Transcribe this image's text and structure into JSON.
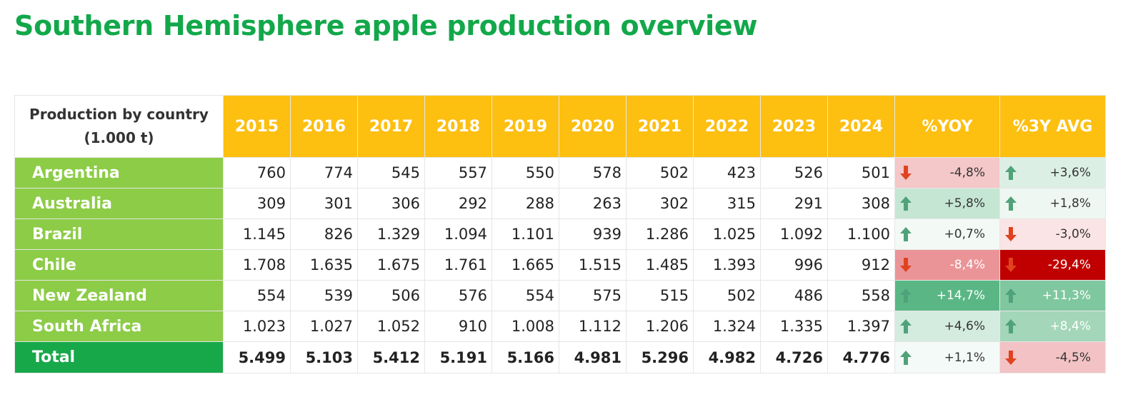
{
  "title": "Southern Hemisphere apple production overview",
  "table": {
    "header": {
      "label_line1": "Production by country",
      "label_line2": "(1.000 t)",
      "years": [
        "2015",
        "2016",
        "2017",
        "2018",
        "2019",
        "2020",
        "2021",
        "2022",
        "2023",
        "2024"
      ],
      "yoy": "%YOY",
      "avg3y": "%3Y AVG"
    },
    "rows": [
      {
        "country": "Argentina",
        "values": [
          "760",
          "774",
          "545",
          "557",
          "550",
          "578",
          "502",
          "423",
          "526",
          "501"
        ],
        "yoy": {
          "text": "-4,8%",
          "dir": "down",
          "bg": "#f4c7c8",
          "fg": "#333333"
        },
        "avg": {
          "text": "+3,6%",
          "dir": "up",
          "bg": "#dcefe5",
          "fg": "#333333"
        }
      },
      {
        "country": "Australia",
        "values": [
          "309",
          "301",
          "306",
          "292",
          "288",
          "263",
          "302",
          "315",
          "291",
          "308"
        ],
        "yoy": {
          "text": "+5,8%",
          "dir": "up",
          "bg": "#c6e6d4",
          "fg": "#333333"
        },
        "avg": {
          "text": "+1,8%",
          "dir": "up",
          "bg": "#eef7f2",
          "fg": "#333333"
        }
      },
      {
        "country": "Brazil",
        "values": [
          "1.145",
          "826",
          "1.329",
          "1.094",
          "1.101",
          "939",
          "1.286",
          "1.025",
          "1.092",
          "1.100"
        ],
        "yoy": {
          "text": "+0,7%",
          "dir": "up",
          "bg": "#f3faf6",
          "fg": "#333333"
        },
        "avg": {
          "text": "-3,0%",
          "dir": "down",
          "bg": "#fbe4e5",
          "fg": "#333333"
        }
      },
      {
        "country": "Chile",
        "values": [
          "1.708",
          "1.635",
          "1.675",
          "1.761",
          "1.665",
          "1.515",
          "1.485",
          "1.393",
          "996",
          "912"
        ],
        "yoy": {
          "text": "-8,4%",
          "dir": "down",
          "bg": "#eb9497",
          "fg": "#ffffff"
        },
        "avg": {
          "text": "-29,4%",
          "dir": "down",
          "bg": "#c00000",
          "fg": "#ffffff"
        }
      },
      {
        "country": "New Zealand",
        "values": [
          "554",
          "539",
          "506",
          "576",
          "554",
          "575",
          "515",
          "502",
          "486",
          "558"
        ],
        "yoy": {
          "text": "+14,7%",
          "dir": "up",
          "bg": "#5ab785",
          "fg": "#ffffff"
        },
        "avg": {
          "text": "+11,3%",
          "dir": "up",
          "bg": "#7fc79f",
          "fg": "#ffffff"
        }
      },
      {
        "country": "South Africa",
        "values": [
          "1.023",
          "1.027",
          "1.052",
          "910",
          "1.008",
          "1.112",
          "1.206",
          "1.324",
          "1.335",
          "1.397"
        ],
        "yoy": {
          "text": "+4,6%",
          "dir": "up",
          "bg": "#d4ecdf",
          "fg": "#333333"
        },
        "avg": {
          "text": "+8,4%",
          "dir": "up",
          "bg": "#a4d6b9",
          "fg": "#ffffff"
        }
      }
    ],
    "total": {
      "country": "Total",
      "values": [
        "5.499",
        "5.103",
        "5.412",
        "5.191",
        "5.166",
        "4.981",
        "5.296",
        "4.982",
        "4.726",
        "4.776"
      ],
      "yoy": {
        "text": "+1,1%",
        "dir": "up",
        "bg": "#f4faf7",
        "fg": "#333333"
      },
      "avg": {
        "text": "-4,5%",
        "dir": "down",
        "bg": "#f2c2c4",
        "fg": "#333333"
      }
    },
    "colors": {
      "title": "#12a84a",
      "header_bg": "#fdbf10",
      "country_bg": "#8ccc47",
      "total_bg": "#17a84a",
      "arrow_up": "#4fa27a",
      "arrow_down": "#e0431f"
    }
  }
}
